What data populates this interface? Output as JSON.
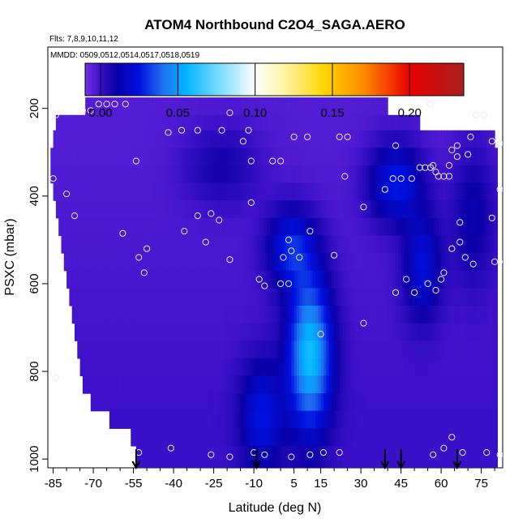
{
  "chart_data": {
    "type": "heatmap",
    "title": "ATOM4 Northbound C2O4_SAGA.AERO",
    "subtitle_flights": "Flts: 7,8,9,10,11,12",
    "subtitle_dates": "MMDD: 0509,0512,0514,0517,0518,0519",
    "xlabel": "Latitude (deg N)",
    "ylabel": "PSXC (mbar)",
    "xlim": [
      -87,
      83
    ],
    "ylim": [
      1020,
      60
    ],
    "x_ticks": [
      -85,
      -70,
      -55,
      -40,
      -25,
      -10,
      5,
      15,
      30,
      45,
      60,
      75
    ],
    "x_tick_labels": [
      "-85",
      "-70",
      "-55",
      "-40",
      "-25",
      "-10",
      "5",
      "15",
      "30",
      "45",
      "60",
      "75"
    ],
    "y_ticks": [
      200,
      400,
      600,
      800,
      1000
    ],
    "y_tick_labels": [
      "200",
      "400",
      "600",
      "800",
      "1000"
    ],
    "colorbar": {
      "min": -0.01,
      "max": 0.235,
      "ticks": [
        0.0,
        0.05,
        0.1,
        0.15,
        0.2
      ],
      "tick_labels": [
        "0.00",
        "0.05",
        "0.10",
        "0.15",
        "0.20"
      ],
      "stops": [
        {
          "v": -0.01,
          "c": "#7a2ee8"
        },
        {
          "v": 0.0,
          "c": "#3a10c8"
        },
        {
          "v": 0.01,
          "c": "#0a00a8"
        },
        {
          "v": 0.025,
          "c": "#0010e0"
        },
        {
          "v": 0.04,
          "c": "#2070f0"
        },
        {
          "v": 0.055,
          "c": "#00b4ff"
        },
        {
          "v": 0.075,
          "c": "#70d8ff"
        },
        {
          "v": 0.1,
          "c": "#fefefe"
        },
        {
          "v": 0.12,
          "c": "#fff4a0"
        },
        {
          "v": 0.145,
          "c": "#ffd400"
        },
        {
          "v": 0.17,
          "c": "#ff8c00"
        },
        {
          "v": 0.2,
          "c": "#e80000"
        },
        {
          "v": 0.235,
          "c": "#a82020"
        }
      ]
    },
    "flight_crossing_latitudes": [
      -54,
      -9,
      39,
      45,
      66
    ],
    "observation_points": [
      [
        -84,
        215
      ],
      [
        -74,
        205
      ],
      [
        -71,
        205
      ],
      [
        -68,
        190
      ],
      [
        -65,
        190
      ],
      [
        -62,
        190
      ],
      [
        -58,
        190
      ],
      [
        -31,
        250
      ],
      [
        -37,
        250
      ],
      [
        -42,
        255
      ],
      [
        -22,
        250
      ],
      [
        -14,
        275
      ],
      [
        -12,
        250
      ],
      [
        -19,
        210
      ],
      [
        -54,
        320
      ],
      [
        -11,
        320
      ],
      [
        -3,
        320
      ],
      [
        0,
        320
      ],
      [
        5,
        265
      ],
      [
        10,
        265
      ],
      [
        22,
        265
      ],
      [
        25,
        265
      ],
      [
        43,
        285
      ],
      [
        56,
        190
      ],
      [
        73,
        215
      ],
      [
        76,
        215
      ],
      [
        71,
        265
      ],
      [
        79,
        275
      ],
      [
        82,
        280
      ],
      [
        -85,
        360
      ],
      [
        -80,
        395
      ],
      [
        -77,
        445
      ],
      [
        -36,
        480
      ],
      [
        -31,
        445
      ],
      [
        -26,
        440
      ],
      [
        -23,
        455
      ],
      [
        -28,
        505
      ],
      [
        -11,
        415
      ],
      [
        -59,
        485
      ],
      [
        -50,
        520
      ],
      [
        -53,
        540
      ],
      [
        -51,
        575
      ],
      [
        -19,
        545
      ],
      [
        24,
        355
      ],
      [
        31,
        425
      ],
      [
        39,
        385
      ],
      [
        42,
        360
      ],
      [
        45,
        360
      ],
      [
        49,
        360
      ],
      [
        52,
        335
      ],
      [
        54,
        335
      ],
      [
        56,
        335
      ],
      [
        57,
        330
      ],
      [
        58,
        345
      ],
      [
        59,
        355
      ],
      [
        61,
        355
      ],
      [
        64,
        295
      ],
      [
        66,
        285
      ],
      [
        66,
        310
      ],
      [
        63,
        330
      ],
      [
        63,
        355
      ],
      [
        70,
        305
      ],
      [
        82,
        385
      ],
      [
        79,
        450
      ],
      [
        67,
        460
      ],
      [
        67,
        505
      ],
      [
        64,
        520
      ],
      [
        69,
        540
      ],
      [
        72,
        555
      ],
      [
        80,
        550
      ],
      [
        84,
        550
      ],
      [
        1,
        540
      ],
      [
        3,
        500
      ],
      [
        4,
        525
      ],
      [
        7,
        540
      ],
      [
        11,
        480
      ],
      [
        20,
        535
      ],
      [
        -8,
        590
      ],
      [
        -6,
        605
      ],
      [
        0,
        600
      ],
      [
        3,
        600
      ],
      [
        47,
        590
      ],
      [
        55,
        600
      ],
      [
        50,
        620
      ],
      [
        43,
        620
      ],
      [
        58,
        615
      ],
      [
        60,
        590
      ],
      [
        61,
        575
      ],
      [
        31,
        690
      ],
      [
        15,
        715
      ],
      [
        -84,
        815
      ],
      [
        -55,
        990
      ],
      [
        -53,
        985
      ],
      [
        -41,
        975
      ],
      [
        -26,
        990
      ],
      [
        -19,
        995
      ],
      [
        -10,
        985
      ],
      [
        -6,
        990
      ],
      [
        4,
        995
      ],
      [
        11,
        990
      ],
      [
        16,
        985
      ],
      [
        22,
        985
      ],
      [
        57,
        990
      ],
      [
        61,
        975
      ],
      [
        64,
        950
      ],
      [
        68,
        985
      ],
      [
        77,
        985
      ],
      [
        82,
        990
      ]
    ]
  }
}
